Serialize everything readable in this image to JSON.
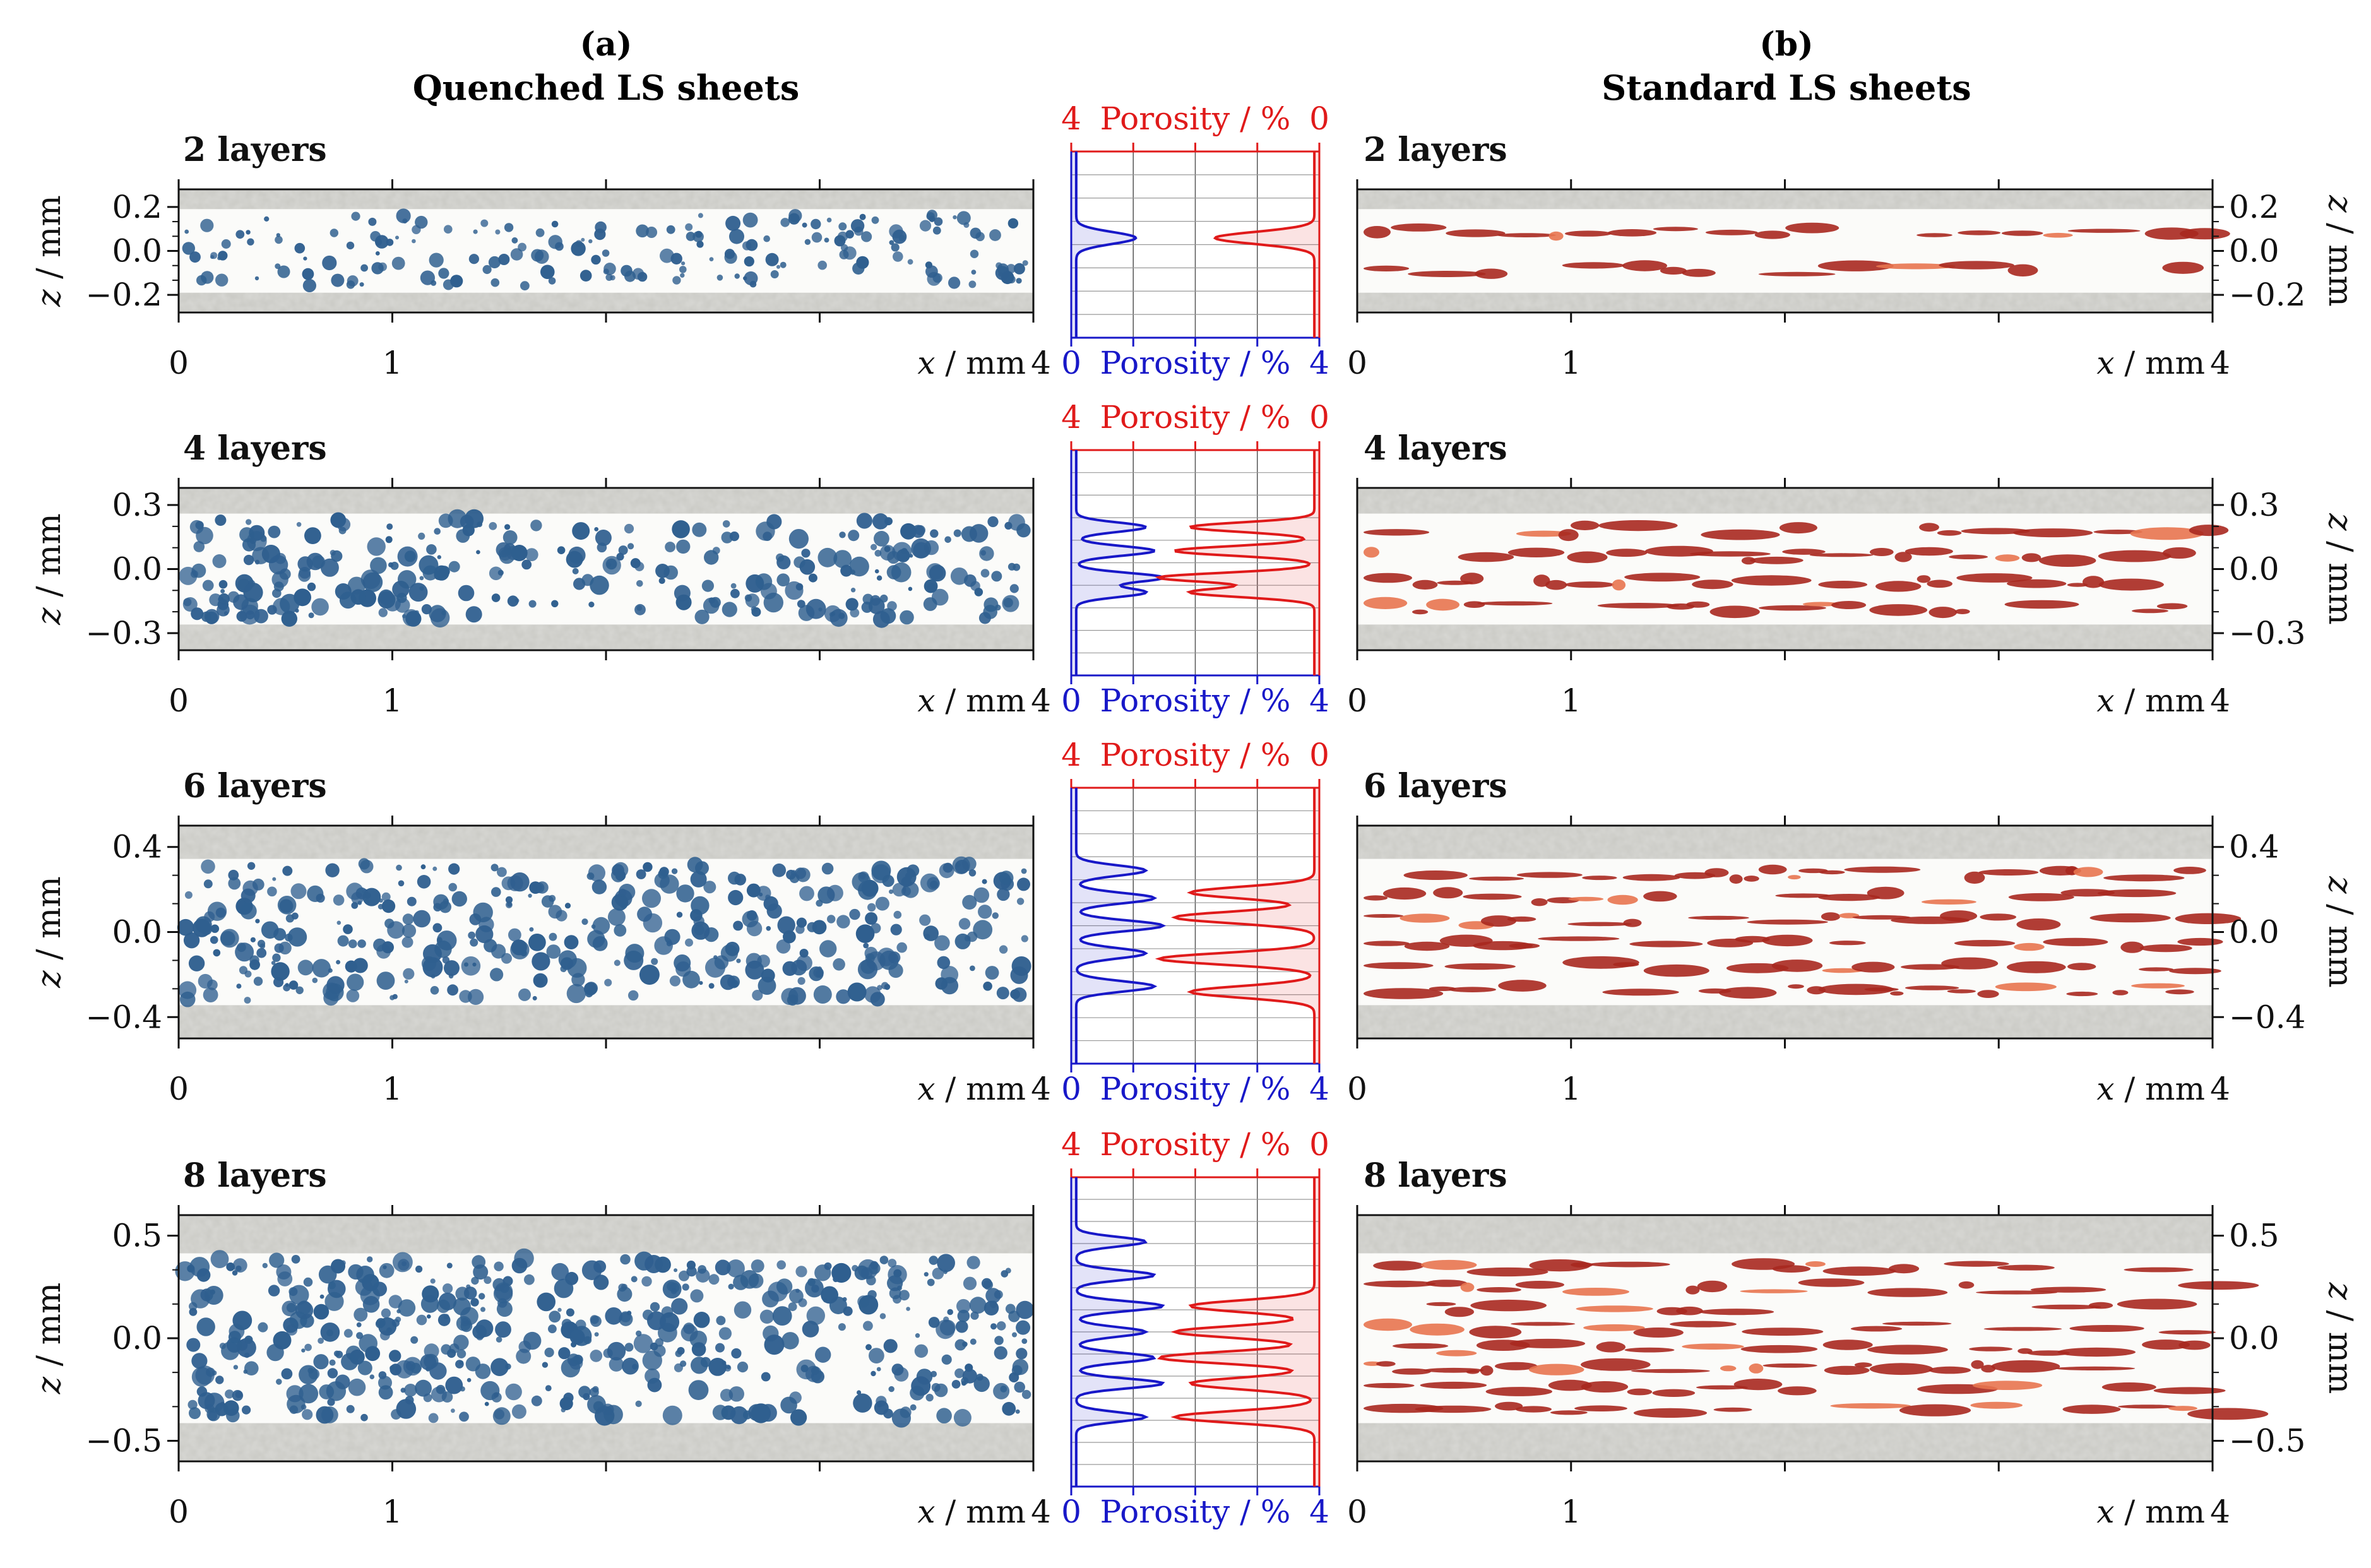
{
  "headers": {
    "left_letter": "(a)",
    "left_title": "Quenched LS sheets",
    "right_letter": "(b)",
    "right_title": "Standard LS sheets"
  },
  "axis_labels": {
    "x_var": "x",
    "x_unit": " / mm",
    "z_var": "z",
    "z_unit": " / mm",
    "x_ticks": [
      "0",
      "1",
      "4"
    ],
    "porosity_label": "Porosity / %",
    "porosity_min": "0",
    "porosity_max": "4"
  },
  "colors": {
    "quenched_pores": "#2f5f8f",
    "standard_pores": "#a8281f",
    "standard_pores_light": "#e8744f",
    "powder_band": "#c9c9c4",
    "blue_profile": "#1818c8",
    "red_profile": "#e01a1a"
  },
  "rows": [
    {
      "label": "2 layers",
      "zticks": [
        "0.2",
        "0.0",
        "−0.2"
      ],
      "zvals": [
        0.2,
        0.0,
        -0.2
      ],
      "zrange": [
        -0.28,
        0.28
      ],
      "peaks_blue": [
        0.02
      ],
      "peaks_red": [
        0.02
      ]
    },
    {
      "label": "4 layers",
      "zticks": [
        "0.3",
        "0.0",
        "−0.3"
      ],
      "zvals": [
        0.3,
        0.0,
        -0.3
      ],
      "zrange": [
        -0.38,
        0.38
      ],
      "peaks_blue": [
        0.12,
        0.04,
        -0.05,
        -0.1
      ],
      "peaks_red": [
        0.12,
        0.04,
        -0.05,
        -0.1
      ]
    },
    {
      "label": "6 layers",
      "zticks": [
        "0.4",
        "0.0",
        "−0.4"
      ],
      "zvals": [
        0.4,
        0.0,
        -0.4
      ],
      "zrange": [
        -0.5,
        0.5
      ],
      "peaks_blue": [
        0.2,
        0.1,
        0.0,
        -0.1,
        -0.22
      ],
      "peaks_red": [
        0.12,
        0.03,
        -0.12,
        -0.24
      ]
    },
    {
      "label": "8 layers",
      "zticks": [
        "0.5",
        "0.0",
        "−0.5"
      ],
      "zvals": [
        0.5,
        0.0,
        -0.5
      ],
      "zrange": [
        -0.6,
        0.6
      ],
      "peaks_blue": [
        0.35,
        0.22,
        0.1,
        0.0,
        -0.1,
        -0.2,
        -0.33
      ],
      "peaks_red": [
        0.1,
        0.0,
        -0.1,
        -0.2,
        -0.33
      ]
    }
  ]
}
